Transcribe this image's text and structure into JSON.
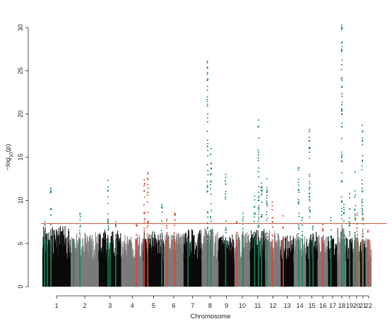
{
  "chart_data": {
    "type": "scatter",
    "title": "",
    "xlabel": "Chromosome",
    "ylabel_parts": {
      "base": "−log",
      "sub": "10",
      "rest": "(p)"
    },
    "ylim": [
      0,
      31
    ],
    "yticks": [
      0,
      5,
      10,
      15,
      20,
      25,
      30
    ],
    "grid": false,
    "legend": "none",
    "significance_threshold": 7.3,
    "threshold_color": "#c8593a",
    "colors": {
      "chrom_odd": "#0a0a0a",
      "chrom_even": "#7a7a7a",
      "hit_green": "#12875a",
      "hit_red": "#e0412b"
    },
    "chromosomes": [
      {
        "label": "1",
        "size": 249,
        "max": 7.0
      },
      {
        "label": "2",
        "size": 243,
        "max": 6.3
      },
      {
        "label": "3",
        "size": 198,
        "max": 6.6
      },
      {
        "label": "4",
        "size": 191,
        "max": 6.0
      },
      {
        "label": "5",
        "size": 181,
        "max": 6.4
      },
      {
        "label": "6",
        "size": 171,
        "max": 6.2
      },
      {
        "label": "7",
        "size": 159,
        "max": 6.8
      },
      {
        "label": "8",
        "size": 146,
        "max": 6.8
      },
      {
        "label": "9",
        "size": 141,
        "max": 6.0
      },
      {
        "label": "10",
        "size": 135,
        "max": 6.3
      },
      {
        "label": "11",
        "size": 135,
        "max": 6.7
      },
      {
        "label": "12",
        "size": 133,
        "max": 6.5
      },
      {
        "label": "13",
        "size": 115,
        "max": 5.9
      },
      {
        "label": "14",
        "size": 107,
        "max": 6.2
      },
      {
        "label": "15",
        "size": 102,
        "max": 6.4
      },
      {
        "label": "16",
        "size": 90,
        "max": 6.0
      },
      {
        "label": "17",
        "size": 81,
        "max": 5.8
      },
      {
        "label": "18",
        "size": 78,
        "max": 6.9
      },
      {
        "label": "19",
        "size": 59,
        "max": 6.0
      },
      {
        "label": "20",
        "size": 63,
        "max": 5.8
      },
      {
        "label": "21",
        "size": 48,
        "max": 5.4
      },
      {
        "label": "22",
        "size": 51,
        "max": 5.6
      }
    ],
    "hits": [
      {
        "chrom": "1",
        "pos": 0.08,
        "peak": 7.5,
        "color": "green"
      },
      {
        "chrom": "1",
        "pos": 0.17,
        "peak": 5.5,
        "color": "green"
      },
      {
        "chrom": "1",
        "pos": 0.3,
        "peak": 11.4,
        "color": "green"
      },
      {
        "chrom": "2",
        "pos": 0.1,
        "peak": 5.5,
        "color": "green"
      },
      {
        "chrom": "2",
        "pos": 0.33,
        "peak": 8.5,
        "color": "green"
      },
      {
        "chrom": "3",
        "pos": 0.42,
        "peak": 12.3,
        "color": "green"
      },
      {
        "chrom": "3",
        "pos": 0.5,
        "peak": 5.0,
        "color": "green"
      },
      {
        "chrom": "3",
        "pos": 0.75,
        "peak": 7.5,
        "color": "green"
      },
      {
        "chrom": "4",
        "pos": 0.7,
        "peak": 7.3,
        "color": "red"
      },
      {
        "chrom": "5",
        "pos": 0.05,
        "peak": 12.4,
        "color": "red"
      },
      {
        "chrom": "5",
        "pos": 0.22,
        "peak": 13.2,
        "color": "red"
      },
      {
        "chrom": "5",
        "pos": 0.9,
        "peak": 9.5,
        "color": "green"
      },
      {
        "chrom": "6",
        "pos": 0.15,
        "peak": 7.8,
        "color": "red"
      },
      {
        "chrom": "6",
        "pos": 0.55,
        "peak": 8.5,
        "color": "red"
      },
      {
        "chrom": "7",
        "pos": 0.25,
        "peak": 5.5,
        "color": "green"
      },
      {
        "chrom": "8",
        "pos": 0.35,
        "peak": 26.1,
        "color": "green"
      },
      {
        "chrom": "8",
        "pos": 0.55,
        "peak": 16.0,
        "color": "green"
      },
      {
        "chrom": "9",
        "pos": 0.45,
        "peak": 13.0,
        "color": "green"
      },
      {
        "chrom": "10",
        "pos": 0.15,
        "peak": 7.5,
        "color": "red"
      },
      {
        "chrom": "10",
        "pos": 0.55,
        "peak": 8.5,
        "color": "green"
      },
      {
        "chrom": "11",
        "pos": 0.3,
        "peak": 10.5,
        "color": "green"
      },
      {
        "chrom": "11",
        "pos": 0.55,
        "peak": 19.3,
        "color": "green"
      },
      {
        "chrom": "11",
        "pos": 0.75,
        "peak": 12.0,
        "color": "green"
      },
      {
        "chrom": "12",
        "pos": 0.1,
        "peak": 12.5,
        "color": "green"
      },
      {
        "chrom": "12",
        "pos": 0.45,
        "peak": 9.8,
        "color": "red"
      },
      {
        "chrom": "13",
        "pos": 0.2,
        "peak": 8.2,
        "color": "red"
      },
      {
        "chrom": "14",
        "pos": 0.4,
        "peak": 13.8,
        "color": "green"
      },
      {
        "chrom": "14",
        "pos": 0.7,
        "peak": 8.0,
        "color": "green"
      },
      {
        "chrom": "15",
        "pos": 0.3,
        "peak": 18.2,
        "color": "green"
      },
      {
        "chrom": "15",
        "pos": 0.6,
        "peak": 7.0,
        "color": "green"
      },
      {
        "chrom": "16",
        "pos": 0.5,
        "peak": 7.2,
        "color": "red"
      },
      {
        "chrom": "17",
        "pos": 0.3,
        "peak": 8.0,
        "color": "green"
      },
      {
        "chrom": "18",
        "pos": 0.5,
        "peak": 30.3,
        "color": "green"
      },
      {
        "chrom": "18",
        "pos": 0.75,
        "peak": 9.5,
        "color": "green"
      },
      {
        "chrom": "19",
        "pos": 0.5,
        "peak": 10.8,
        "color": "green"
      },
      {
        "chrom": "20",
        "pos": 0.3,
        "peak": 13.3,
        "color": "green"
      },
      {
        "chrom": "20",
        "pos": 0.6,
        "peak": 8.5,
        "color": "red"
      },
      {
        "chrom": "21",
        "pos": 0.4,
        "peak": 18.7,
        "color": "green"
      },
      {
        "chrom": "21",
        "pos": 0.55,
        "peak": 8.0,
        "color": "red"
      },
      {
        "chrom": "22",
        "pos": 0.4,
        "peak": 6.5,
        "color": "red"
      }
    ]
  }
}
